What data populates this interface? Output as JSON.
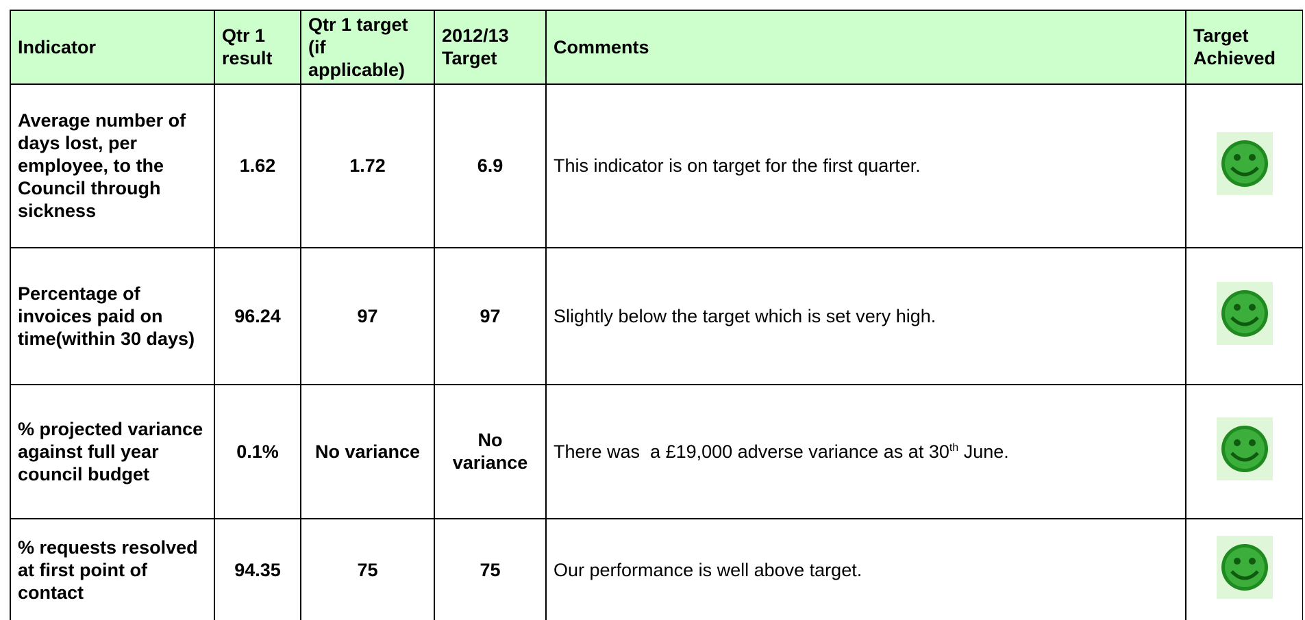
{
  "table": {
    "header": [
      "Indicator",
      "Qtr 1 result",
      "Qtr 1 target (if applicable)",
      "2012/13 Target",
      "Comments",
      "Target Achieved"
    ],
    "rows": [
      {
        "indicator": "Average number of days lost, per employee, to the Council through sickness",
        "qtr1_result": "1.62",
        "qtr1_target": "1.72",
        "annual_target": "6.9",
        "comment": [
          "This indicator is on target for the first quarter."
        ]
      },
      {
        "indicator": "Percentage of invoices paid on time(within 30 days)",
        "qtr1_result": "96.24",
        "qtr1_target": "97",
        "annual_target": "97",
        "comment": [
          "Slightly below the target which is set very high."
        ]
      },
      {
        "indicator": "% projected variance against full year council budget",
        "qtr1_result": "0.1%",
        "qtr1_target": "No variance",
        "annual_target": "No variance",
        "comment": [
          "There was  a £19,000 adverse variance as at 30",
          "th",
          " June."
        ]
      },
      {
        "indicator": "% requests resolved at first point of contact",
        "qtr1_result": "94.35",
        "qtr1_target": "75",
        "annual_target": "75",
        "comment": [
          "Our performance is well above target."
        ]
      }
    ]
  }
}
